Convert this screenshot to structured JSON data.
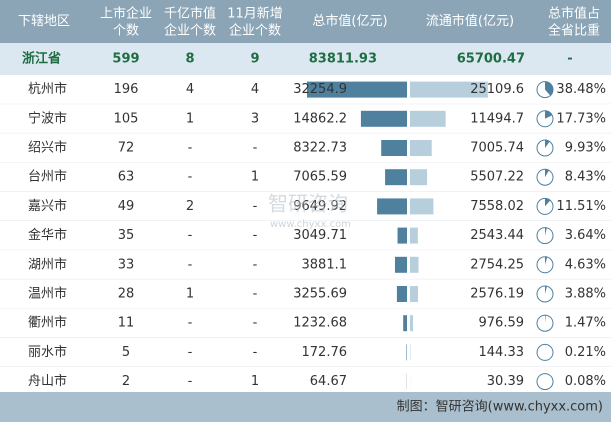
{
  "table": {
    "headers": [
      [
        "下辖地区"
      ],
      [
        "上市企业",
        "个数"
      ],
      [
        "千亿市值",
        "企业个数"
      ],
      [
        "11月新增",
        "企业个数"
      ],
      [
        "总市值(亿元)"
      ],
      [
        "流通市值(亿元)"
      ],
      [
        "总市值占",
        "全省比重"
      ]
    ],
    "rows": [
      {
        "region": "浙江省",
        "listed": 599,
        "trillion": 8,
        "new": 9,
        "total": 83811.93,
        "float": 65700.47,
        "share": "-"
      },
      {
        "region": "杭州市",
        "listed": 196,
        "trillion": 4,
        "new": 4,
        "total": 32254.9,
        "float": 25109.6,
        "share": {
          "value": 38.48,
          "label": "38.48%"
        }
      },
      {
        "region": "宁波市",
        "listed": 105,
        "trillion": 1,
        "new": 3,
        "total": 14862.2,
        "float": 11494.7,
        "share": {
          "value": 17.73,
          "label": "17.73%"
        }
      },
      {
        "region": "绍兴市",
        "listed": 72,
        "trillion": "-",
        "new": "-",
        "total": 8322.73,
        "float": 7005.74,
        "share": {
          "value": 9.93,
          "label": "9.93%"
        }
      },
      {
        "region": "台州市",
        "listed": 63,
        "trillion": "-",
        "new": 1,
        "total": 7065.59,
        "float": 5507.22,
        "share": {
          "value": 8.43,
          "label": "8.43%"
        }
      },
      {
        "region": "嘉兴市",
        "listed": 49,
        "trillion": 2,
        "new": "-",
        "total": 9649.92,
        "float": 7558.02,
        "share": {
          "value": 11.51,
          "label": "11.51%"
        }
      },
      {
        "region": "金华市",
        "listed": 35,
        "trillion": "-",
        "new": "-",
        "total": 3049.71,
        "float": 2543.44,
        "share": {
          "value": 3.64,
          "label": "3.64%"
        }
      },
      {
        "region": "湖州市",
        "listed": 33,
        "trillion": "-",
        "new": "-",
        "total": 3881.1,
        "float": 2754.25,
        "share": {
          "value": 4.63,
          "label": "4.63%"
        }
      },
      {
        "region": "温州市",
        "listed": 28,
        "trillion": 1,
        "new": "-",
        "total": 3255.69,
        "float": 2576.19,
        "share": {
          "value": 3.88,
          "label": "3.88%"
        }
      },
      {
        "region": "衢州市",
        "listed": 11,
        "trillion": "-",
        "new": "-",
        "total": 1232.68,
        "float": 976.59,
        "share": {
          "value": 1.47,
          "label": "1.47%"
        }
      },
      {
        "region": "丽水市",
        "listed": 5,
        "trillion": "-",
        "new": "-",
        "total": 172.76,
        "float": 144.33,
        "share": {
          "value": 0.21,
          "label": "0.21%"
        }
      },
      {
        "region": "舟山市",
        "listed": 2,
        "trillion": "-",
        "new": 1,
        "total": 64.67,
        "float": 30.39,
        "share": {
          "value": 0.08,
          "label": "0.08%"
        }
      }
    ]
  },
  "watermark": {
    "name": "智研咨询",
    "url": "www.chyxx.com"
  },
  "footer": "制图：智研咨询(www.chyxx.com)"
}
